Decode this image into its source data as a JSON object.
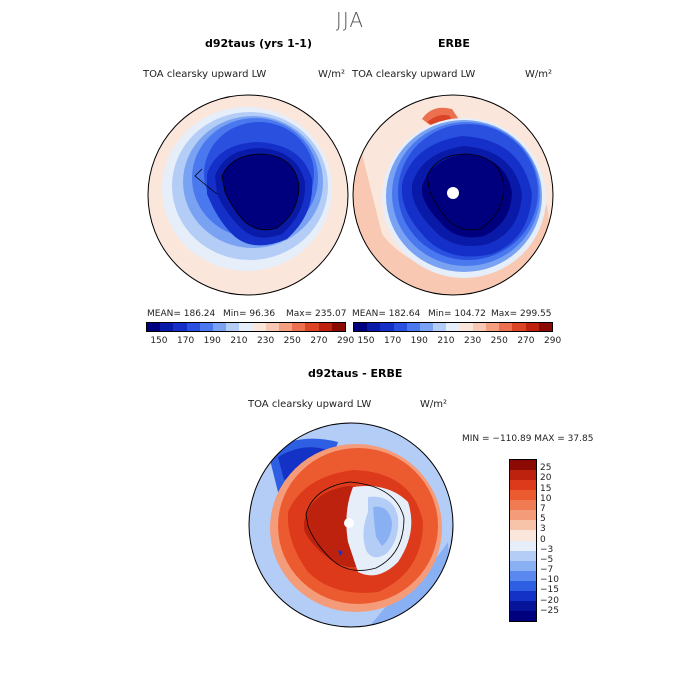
{
  "title": "JJA",
  "panels": {
    "left": {
      "title": "d92taus (yrs 1-1)",
      "variable": "TOA clearsky upward LW",
      "units": "W/m²",
      "mean": "MEAN= 186.24",
      "min": "Min=  96.36",
      "max": "Max= 235.07"
    },
    "right": {
      "title": "ERBE",
      "variable": "TOA clearsky upward LW",
      "units": "W/m²",
      "mean": "MEAN= 182.64",
      "min": "Min= 104.72",
      "max": "Max= 299.55"
    },
    "diff": {
      "title": "d92taus - ERBE",
      "variable": "TOA clearsky upward LW",
      "units": "W/m²",
      "minmax": "MIN = −110.89 MAX =  37.85"
    }
  },
  "colorbar_abs": {
    "colors": [
      "#00007f",
      "#0a1aa8",
      "#1530c8",
      "#2a50e0",
      "#4a78ee",
      "#7aa2f2",
      "#b4cdf6",
      "#e6eefa",
      "#fbe6dc",
      "#f8c8b2",
      "#f4a080",
      "#ec7050",
      "#dc4426",
      "#bc220e",
      "#8c0a04"
    ],
    "labels": [
      "150",
      "170",
      "190",
      "210",
      "230",
      "250",
      "270",
      "290"
    ]
  },
  "colorbar_diff": {
    "colors": [
      "#8c0a04",
      "#bc220e",
      "#dc3a1a",
      "#ec5a30",
      "#f07a52",
      "#f49c7a",
      "#f7c4aa",
      "#fbe6dc",
      "#e6eefa",
      "#b4cdf6",
      "#8ab0f4",
      "#5a88ee",
      "#2e5ee2",
      "#1532c6",
      "#06149a",
      "#00007f"
    ],
    "labels": [
      "25",
      "20",
      "15",
      "10",
      "7",
      "5",
      "3",
      "0",
      "−3",
      "−5",
      "−7",
      "−10",
      "−15",
      "−20",
      "−25"
    ]
  }
}
